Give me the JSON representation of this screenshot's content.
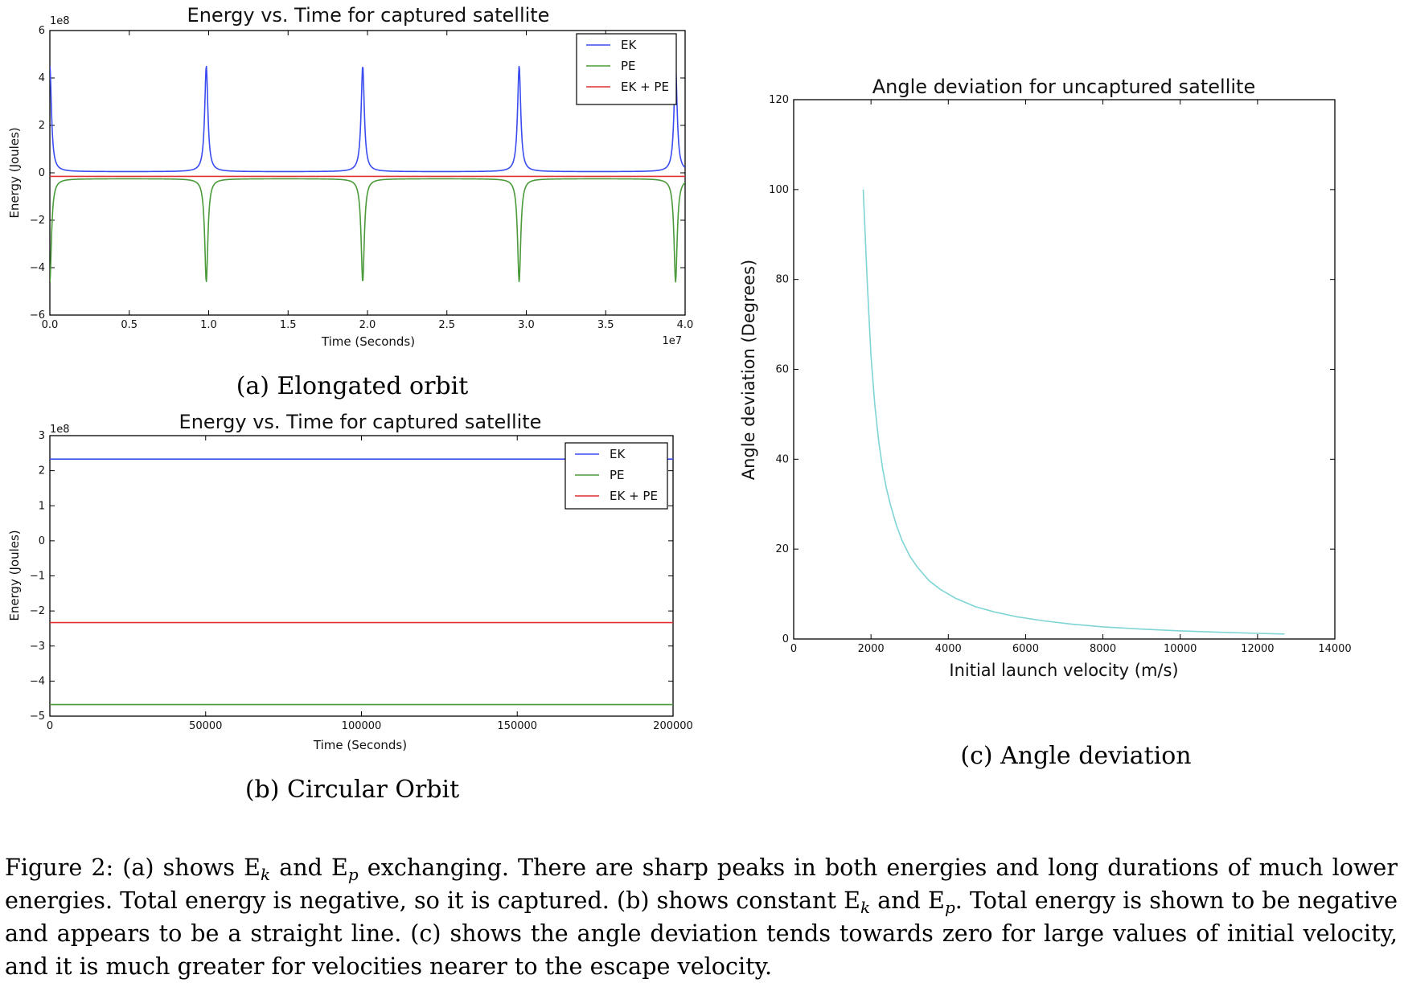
{
  "chart_data": [
    {
      "id": "a",
      "type": "line",
      "title": "Energy vs. Time for captured satellite",
      "xlabel": "Time (Seconds)",
      "ylabel": "Energy (Joules)",
      "xlim": [
        0,
        4.0
      ],
      "ylim": [
        -6,
        6
      ],
      "x_multiplier": "1e7",
      "y_multiplier": "1e8",
      "x_ticks": [
        "0.0",
        "0.5",
        "1.0",
        "1.5",
        "2.0",
        "2.5",
        "3.0",
        "3.5",
        "4.0"
      ],
      "y_ticks": [
        "−6",
        "−4",
        "−2",
        "0",
        "2",
        "4",
        "6"
      ],
      "legend_position": "top-right",
      "grid": false,
      "series": [
        {
          "name": "EK",
          "color": "#3a4cf0",
          "shape": "spikes",
          "baseline": 0.05,
          "peak": 4.5,
          "peak_times": [
            0.985,
            1.97,
            2.955,
            3.94
          ]
        },
        {
          "name": "PE",
          "color": "#4a9a3a",
          "shape": "spikes",
          "baseline": -0.25,
          "peak": -4.6,
          "peak_times": [
            0.985,
            1.97,
            2.955,
            3.94
          ]
        },
        {
          "name": "EK + PE",
          "color": "#e03030",
          "shape": "constant",
          "value": -0.15
        }
      ],
      "caption": "(a) Elongated orbit"
    },
    {
      "id": "b",
      "type": "line",
      "title": "Energy vs. Time for captured satellite",
      "xlabel": "Time (Seconds)",
      "ylabel": "Energy (Joules)",
      "xlim": [
        0,
        200000
      ],
      "ylim": [
        -5,
        3
      ],
      "y_multiplier": "1e8",
      "x_ticks": [
        "0",
        "50000",
        "100000",
        "150000",
        "200000"
      ],
      "y_ticks": [
        "−5",
        "−4",
        "−3",
        "−2",
        "−1",
        "0",
        "1",
        "2",
        "3"
      ],
      "legend_position": "top-right",
      "grid": false,
      "series": [
        {
          "name": "EK",
          "color": "#3a4cf0",
          "shape": "constant",
          "value": 2.33
        },
        {
          "name": "PE",
          "color": "#4a9a3a",
          "shape": "constant",
          "value": -4.67
        },
        {
          "name": "EK + PE",
          "color": "#e03030",
          "shape": "constant",
          "value": -2.33
        }
      ],
      "caption": "(b) Circular Orbit"
    },
    {
      "id": "c",
      "type": "line",
      "title": "Angle deviation for uncaptured satellite",
      "xlabel": "Initial launch velocity (m/s)",
      "ylabel": "Angle deviation (Degrees)",
      "xlim": [
        0,
        14000
      ],
      "ylim": [
        0,
        120
      ],
      "x_ticks": [
        "0",
        "2000",
        "4000",
        "6000",
        "8000",
        "10000",
        "12000",
        "14000"
      ],
      "y_ticks": [
        "0",
        "20",
        "40",
        "60",
        "80",
        "100",
        "120"
      ],
      "grid": false,
      "series": [
        {
          "name": "",
          "color": "#7fd4d4",
          "x": [
            1800,
            1900,
            2000,
            2100,
            2200,
            2300,
            2400,
            2500,
            2650,
            2800,
            3000,
            3200,
            3500,
            3800,
            4200,
            4700,
            5200,
            5800,
            6500,
            7200,
            8000,
            9000,
            10000,
            11000,
            12000,
            12700
          ],
          "y": [
            100,
            80,
            63,
            52,
            44,
            38,
            33.5,
            30,
            25.5,
            22,
            18.5,
            16,
            13,
            11,
            9,
            7.2,
            6,
            4.9,
            4,
            3.3,
            2.7,
            2.2,
            1.8,
            1.5,
            1.25,
            1.1
          ]
        }
      ],
      "caption": "(c) Angle deviation"
    }
  ],
  "figure_caption": {
    "parts": [
      {
        "t": "Figure 2: (a) shows E"
      },
      {
        "sub": "k"
      },
      {
        "t": " and E"
      },
      {
        "sub": "p"
      },
      {
        "t": " exchanging. There are sharp peaks in both energies and long durations of much lower energies. Total energy is negative, so it is captured. (b) shows constant E"
      },
      {
        "sub": "k"
      },
      {
        "t": " and E"
      },
      {
        "sub": "p"
      },
      {
        "t": ". Total energy is shown to be negative and appears to be a straight line. (c) shows the angle deviation tends towards zero for large values of initial velocity, and it is much greater for velocities nearer to the escape velocity."
      }
    ]
  }
}
